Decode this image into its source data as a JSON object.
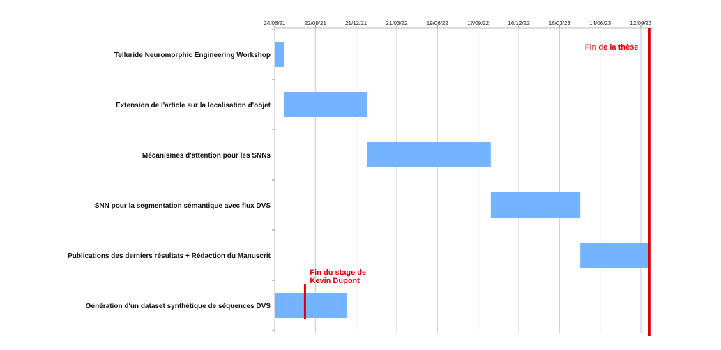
{
  "chart_data": {
    "type": "gantt",
    "x_axis": {
      "range": [
        "2021-06-24",
        "2023-10-01"
      ],
      "ticks": [
        {
          "date": "2021-06-24",
          "label": "24/06/21"
        },
        {
          "date": "2021-09-22",
          "label": "22/09/21"
        },
        {
          "date": "2021-12-21",
          "label": "21/12/21"
        },
        {
          "date": "2022-03-21",
          "label": "21/03/22"
        },
        {
          "date": "2022-06-19",
          "label": "19/06/22"
        },
        {
          "date": "2022-09-17",
          "label": "17/09/22"
        },
        {
          "date": "2022-12-16",
          "label": "16/12/22"
        },
        {
          "date": "2023-03-16",
          "label": "16/03/23"
        },
        {
          "date": "2023-06-14",
          "label": "14/06/23"
        },
        {
          "date": "2023-09-12",
          "label": "12/09/23"
        }
      ],
      "position": "top",
      "grid": true
    },
    "tasks": [
      {
        "label": "Telluride Neuromorphic Engineering Workshop",
        "start": "2021-06-25",
        "end": "2021-07-15"
      },
      {
        "label": "Extension de l'article sur la localisation d'objet",
        "start": "2021-07-15",
        "end": "2022-01-15"
      },
      {
        "label": "Mécanismes d'attention pour les SNNs",
        "start": "2022-01-15",
        "end": "2022-10-15"
      },
      {
        "label": "SNN pour la segmentation sémantique avec flux DVS",
        "start": "2022-10-15",
        "end": "2023-05-01"
      },
      {
        "label": "Publications des derniers résultats + Rédaction du Manuscrit",
        "start": "2023-05-01",
        "end": "2023-09-30"
      },
      {
        "label": "Génération d'un dataset synthétique de séquences DVS",
        "start": "2021-06-20",
        "end": "2021-12-01"
      }
    ],
    "bar_color": "#72b4ff",
    "markers": [
      {
        "date": "2023-10-01",
        "label_lines": [
          "Fin de la thèse"
        ],
        "color": "#e00000",
        "span": "full"
      },
      {
        "date": "2021-08-30",
        "label_lines": [
          "Fin du stage de",
          "Kevin Dupont"
        ],
        "color": "#e00000",
        "span": "row",
        "row": 5
      }
    ]
  }
}
